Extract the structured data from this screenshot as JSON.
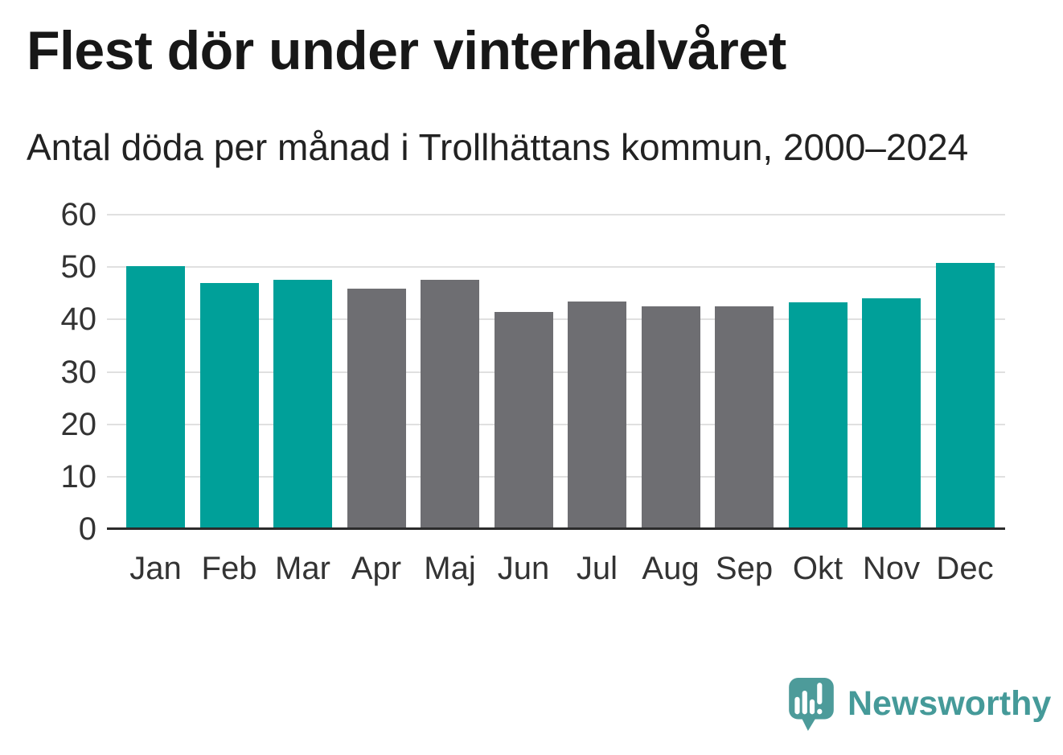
{
  "header": {
    "title": "Flest dör under vinterhalvåret",
    "subtitle": "Antal döda per månad i Trollhättans kommun, 2000–2024"
  },
  "chart_data": {
    "type": "bar",
    "title": "Flest dör under vinterhalvåret",
    "subtitle": "Antal döda per månad i Trollhättans kommun, 2000–2024",
    "categories": [
      "Jan",
      "Feb",
      "Mar",
      "Apr",
      "Maj",
      "Jun",
      "Jul",
      "Aug",
      "Sep",
      "Okt",
      "Nov",
      "Dec"
    ],
    "values": [
      50.2,
      46.9,
      47.6,
      45.9,
      47.6,
      41.5,
      43.4,
      42.5,
      42.5,
      43.3,
      44.1,
      50.8
    ],
    "bar_groups": [
      "winter",
      "winter",
      "winter",
      "summer",
      "summer",
      "summer",
      "summer",
      "summer",
      "summer",
      "winter",
      "winter",
      "winter"
    ],
    "xlabel": "",
    "ylabel": "",
    "ylim": [
      0,
      60
    ],
    "yticks": [
      0,
      10,
      20,
      30,
      40,
      50,
      60
    ],
    "grid": true,
    "legend": "none",
    "colors": {
      "winter": "#00a099",
      "summer": "#6e6e72",
      "gridline": "#e0e0e0",
      "axis": "#2b2b2b"
    }
  },
  "branding": {
    "logo_text": "Newsworthy",
    "logo_icon": "newsworthy-speech-bubble-chart-icon",
    "brand_color": "#4a9b9a"
  }
}
